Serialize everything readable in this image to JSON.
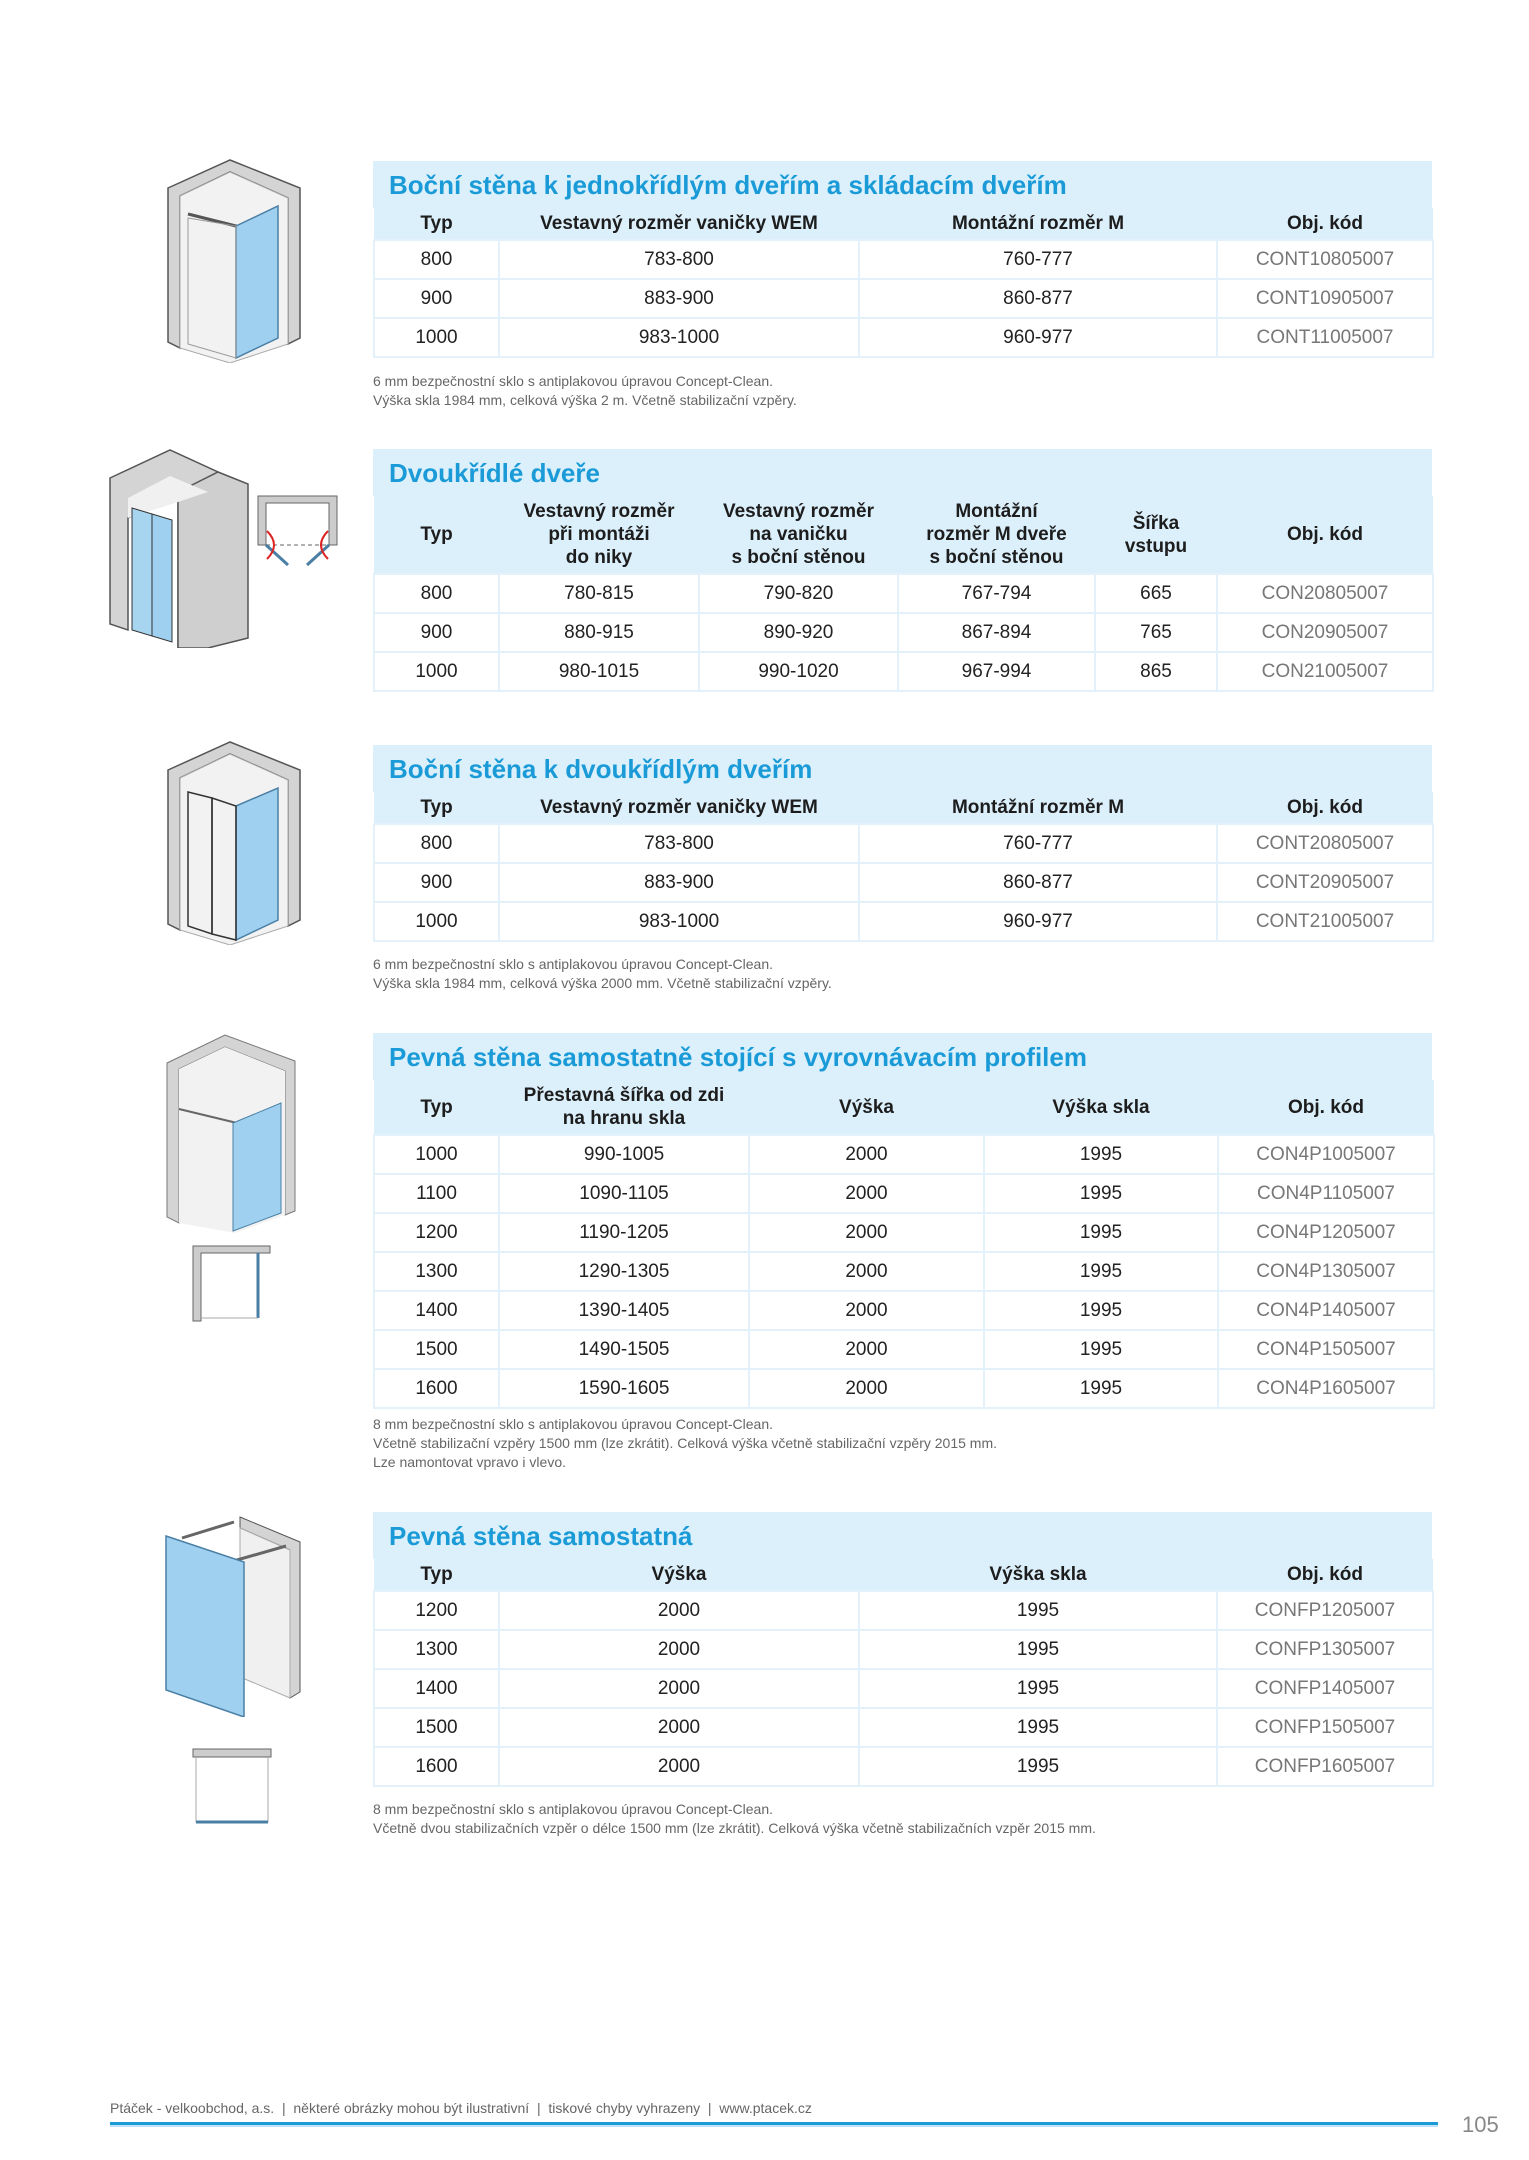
{
  "colors": {
    "accent": "#1a9bd7",
    "header_bg": "#dcf0fb",
    "code_text": "#777777"
  },
  "sections": [
    {
      "title": "Boční stěna k jednokřídlým dveřím a skládacím dveřím",
      "headers": [
        "Typ",
        "Vestavný rozměr vaničky WEM",
        "Montážní rozměr M",
        "Obj. kód"
      ],
      "rows": [
        [
          "800",
          "783-800",
          "760-777",
          "CONT10805007"
        ],
        [
          "900",
          "883-900",
          "860-877",
          "CONT10905007"
        ],
        [
          "1000",
          "983-1000",
          "960-977",
          "CONT11005007"
        ]
      ],
      "notes": [
        "6 mm bezpečnostní sklo s antiplakovou úpravou Concept-Clean.",
        "Výška skla 1984 mm, celková výška 2 m. Včetně stabilizační vzpěry."
      ]
    },
    {
      "title": "Dvoukřídlé dveře",
      "headers": [
        "Typ",
        "Vestavný rozměr\npři montáži\ndo niky",
        "Vestavný rozměr\nna vaničku\ns boční stěnou",
        "Montážní\nrozměr M dveře\ns boční stěnou",
        "Šířka\nvstupu",
        "Obj. kód"
      ],
      "rows": [
        [
          "800",
          "780-815",
          "790-820",
          "767-794",
          "665",
          "CON20805007"
        ],
        [
          "900",
          "880-915",
          "890-920",
          "867-894",
          "765",
          "CON20905007"
        ],
        [
          "1000",
          "980-1015",
          "990-1020",
          "967-994",
          "865",
          "CON21005007"
        ]
      ],
      "notes": []
    },
    {
      "title": "Boční stěna k dvoukřídlým dveřím",
      "headers": [
        "Typ",
        "Vestavný rozměr vaničky WEM",
        "Montážní rozměr M",
        "Obj. kód"
      ],
      "rows": [
        [
          "800",
          "783-800",
          "760-777",
          "CONT20805007"
        ],
        [
          "900",
          "883-900",
          "860-877",
          "CONT20905007"
        ],
        [
          "1000",
          "983-1000",
          "960-977",
          "CONT21005007"
        ]
      ],
      "notes": [
        "6 mm bezpečnostní sklo s antiplakovou úpravou Concept-Clean.",
        "Výška skla 1984 mm, celková výška 2000 mm. Včetně stabilizační vzpěry."
      ]
    },
    {
      "title": "Pevná stěna samostatně stojící s vyrovnávacím profilem",
      "headers": [
        "Typ",
        "Přestavná šířka od zdi\nna hranu skla",
        "Výška",
        "Výška skla",
        "Obj. kód"
      ],
      "rows": [
        [
          "1000",
          "990-1005",
          "2000",
          "1995",
          "CON4P1005007"
        ],
        [
          "1100",
          "1090-1105",
          "2000",
          "1995",
          "CON4P1105007"
        ],
        [
          "1200",
          "1190-1205",
          "2000",
          "1995",
          "CON4P1205007"
        ],
        [
          "1300",
          "1290-1305",
          "2000",
          "1995",
          "CON4P1305007"
        ],
        [
          "1400",
          "1390-1405",
          "2000",
          "1995",
          "CON4P1405007"
        ],
        [
          "1500",
          "1490-1505",
          "2000",
          "1995",
          "CON4P1505007"
        ],
        [
          "1600",
          "1590-1605",
          "2000",
          "1995",
          "CON4P1605007"
        ]
      ],
      "notes": [
        "8 mm bezpečnostní sklo s antiplakovou úpravou Concept-Clean.",
        "Včetně stabilizační vzpěry 1500 mm (lze zkrátit). Celková výška včetně stabilizační vzpěry 2015 mm.",
        "Lze namontovat vpravo i vlevo."
      ]
    },
    {
      "title": "Pevná stěna samostatná",
      "headers": [
        "Typ",
        "Výška",
        "Výška skla",
        "Obj. kód"
      ],
      "rows": [
        [
          "1200",
          "2000",
          "1995",
          "CONFP1205007"
        ],
        [
          "1300",
          "2000",
          "1995",
          "CONFP1305007"
        ],
        [
          "1400",
          "2000",
          "1995",
          "CONFP1405007"
        ],
        [
          "1500",
          "2000",
          "1995",
          "CONFP1505007"
        ],
        [
          "1600",
          "2000",
          "1995",
          "CONFP1605007"
        ]
      ],
      "notes": [
        "8 mm bezpečnostní sklo s antiplakovou úpravou Concept-Clean.",
        "Včetně dvou stabilizačních vzpěr o délce 1500 mm (lze zkrátit). Celková výška včetně stabilizačních vzpěr 2015 mm."
      ]
    }
  ],
  "footer": {
    "text": "Ptáček - velkoobchod, a.s.  |  některé obrázky mohou být ilustrativní  |  tiskové chyby vyhrazeny  |  www.ptacek.cz",
    "page": "105"
  }
}
